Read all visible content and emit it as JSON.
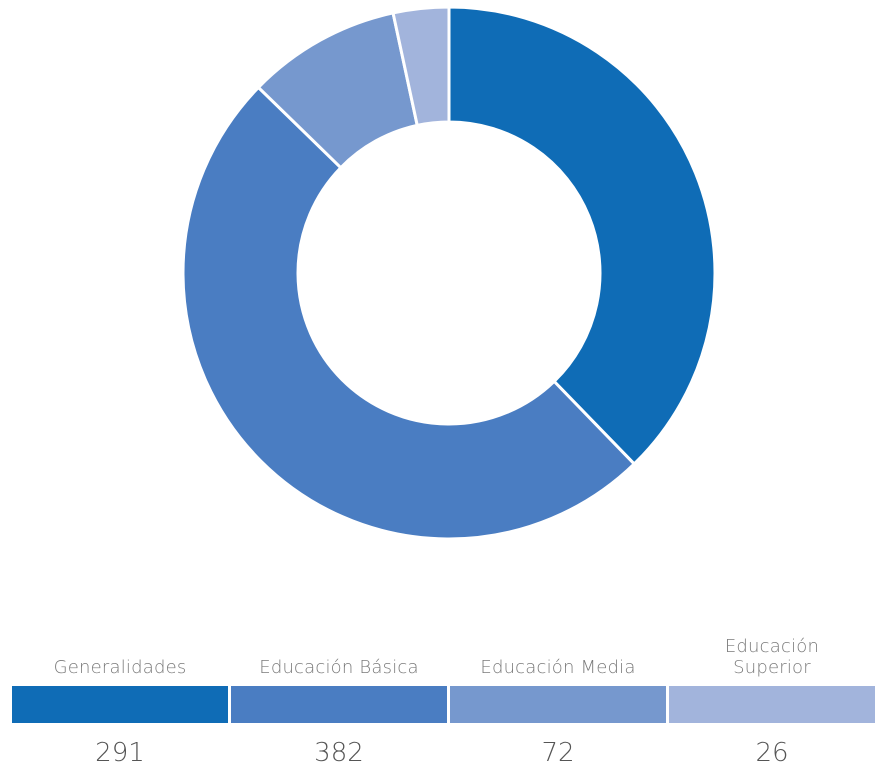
{
  "chart_data": {
    "type": "pie",
    "donut": true,
    "categories": [
      "Generalidades",
      "Educación Básica",
      "Educación Media",
      "Educación Superior"
    ],
    "values": [
      291,
      382,
      72,
      26
    ],
    "colors": [
      "#0F6CB6",
      "#4A7DC2",
      "#7698CE",
      "#A2B4DC"
    ],
    "legend_position": "bottom"
  },
  "legend": {
    "items": [
      {
        "label": "Generalidades",
        "value": "291",
        "color": "#0F6CB6"
      },
      {
        "label": "Educación Básica",
        "value": "382",
        "color": "#4A7DC2"
      },
      {
        "label": "Educación Media",
        "value": "72",
        "color": "#7698CE"
      },
      {
        "label": "Educación Superior",
        "value": "26",
        "color": "#A2B4DC"
      }
    ]
  }
}
